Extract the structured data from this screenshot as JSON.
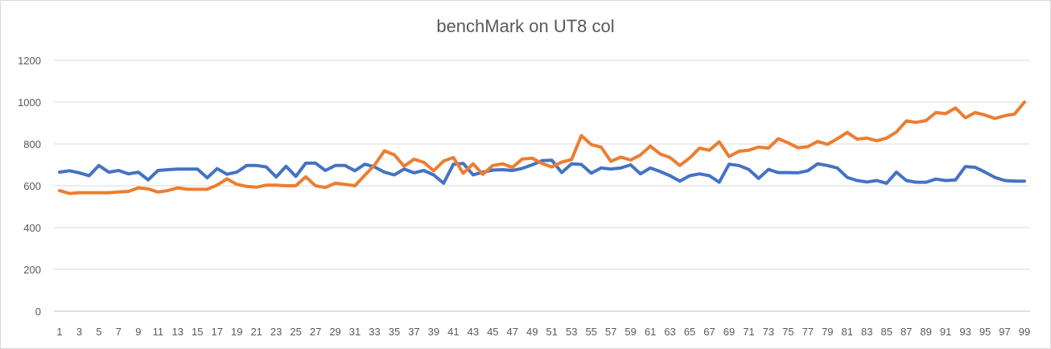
{
  "chart_data": {
    "type": "line",
    "title": "benchMark on UT8 col",
    "xlabel": "",
    "ylabel": "",
    "x": [
      1,
      2,
      3,
      4,
      5,
      6,
      7,
      8,
      9,
      10,
      11,
      12,
      13,
      14,
      15,
      16,
      17,
      18,
      19,
      20,
      21,
      22,
      23,
      24,
      25,
      26,
      27,
      28,
      29,
      30,
      31,
      32,
      33,
      34,
      35,
      36,
      37,
      38,
      39,
      40,
      41,
      42,
      43,
      44,
      45,
      46,
      47,
      48,
      49,
      50,
      51,
      52,
      53,
      54,
      55,
      56,
      57,
      58,
      59,
      60,
      61,
      62,
      63,
      64,
      65,
      66,
      67,
      68,
      69,
      70,
      71,
      72,
      73,
      74,
      75,
      76,
      77,
      78,
      79,
      80,
      81,
      82,
      83,
      84,
      85,
      86,
      87,
      88,
      89,
      90,
      91,
      92,
      93,
      94,
      95,
      96,
      97,
      98,
      99
    ],
    "x_tick_labels": [
      "1",
      "3",
      "5",
      "7",
      "9",
      "11",
      "13",
      "15",
      "17",
      "19",
      "21",
      "23",
      "25",
      "27",
      "29",
      "31",
      "33",
      "35",
      "37",
      "39",
      "41",
      "43",
      "45",
      "47",
      "49",
      "51",
      "53",
      "55",
      "57",
      "59",
      "61",
      "63",
      "65",
      "67",
      "69",
      "71",
      "73",
      "75",
      "77",
      "79",
      "81",
      "83",
      "85",
      "87",
      "89",
      "91",
      "93",
      "95",
      "97",
      "99"
    ],
    "ylim": [
      0,
      1200
    ],
    "y_ticks": [
      0,
      200,
      400,
      600,
      800,
      1000,
      1200
    ],
    "grid": true,
    "series": [
      {
        "color": "#4472c4",
        "values": [
          665,
          672,
          662,
          648,
          697,
          665,
          673,
          657,
          665,
          628,
          673,
          677,
          680,
          680,
          680,
          638,
          682,
          655,
          665,
          697,
          697,
          690,
          642,
          693,
          645,
          708,
          708,
          673,
          697,
          697,
          672,
          703,
          690,
          665,
          652,
          680,
          662,
          673,
          652,
          612,
          703,
          707,
          652,
          665,
          675,
          677,
          673,
          683,
          700,
          720,
          722,
          663,
          705,
          702,
          660,
          685,
          680,
          685,
          700,
          657,
          685,
          668,
          648,
          622,
          648,
          657,
          648,
          617,
          703,
          697,
          678,
          635,
          678,
          663,
          663,
          662,
          672,
          705,
          697,
          685,
          640,
          625,
          618,
          625,
          612,
          665,
          625,
          617,
          617,
          632,
          625,
          628,
          692,
          688,
          665,
          640,
          625,
          622,
          622
        ]
      },
      {
        "color": "#ed7d31",
        "values": [
          577,
          563,
          567,
          567,
          567,
          567,
          570,
          573,
          590,
          585,
          570,
          577,
          590,
          583,
          583,
          583,
          603,
          633,
          607,
          597,
          593,
          603,
          603,
          600,
          600,
          643,
          600,
          592,
          612,
          607,
          600,
          650,
          700,
          767,
          748,
          693,
          727,
          712,
          672,
          718,
          735,
          660,
          705,
          655,
          697,
          705,
          688,
          728,
          732,
          707,
          690,
          713,
          725,
          840,
          797,
          785,
          717,
          737,
          723,
          747,
          790,
          752,
          735,
          697,
          733,
          780,
          770,
          810,
          740,
          765,
          770,
          785,
          780,
          825,
          805,
          782,
          787,
          812,
          798,
          825,
          855,
          823,
          828,
          815,
          828,
          857,
          910,
          903,
          912,
          950,
          945,
          972,
          925,
          950,
          938,
          922,
          935,
          943,
          1000
        ]
      }
    ]
  }
}
